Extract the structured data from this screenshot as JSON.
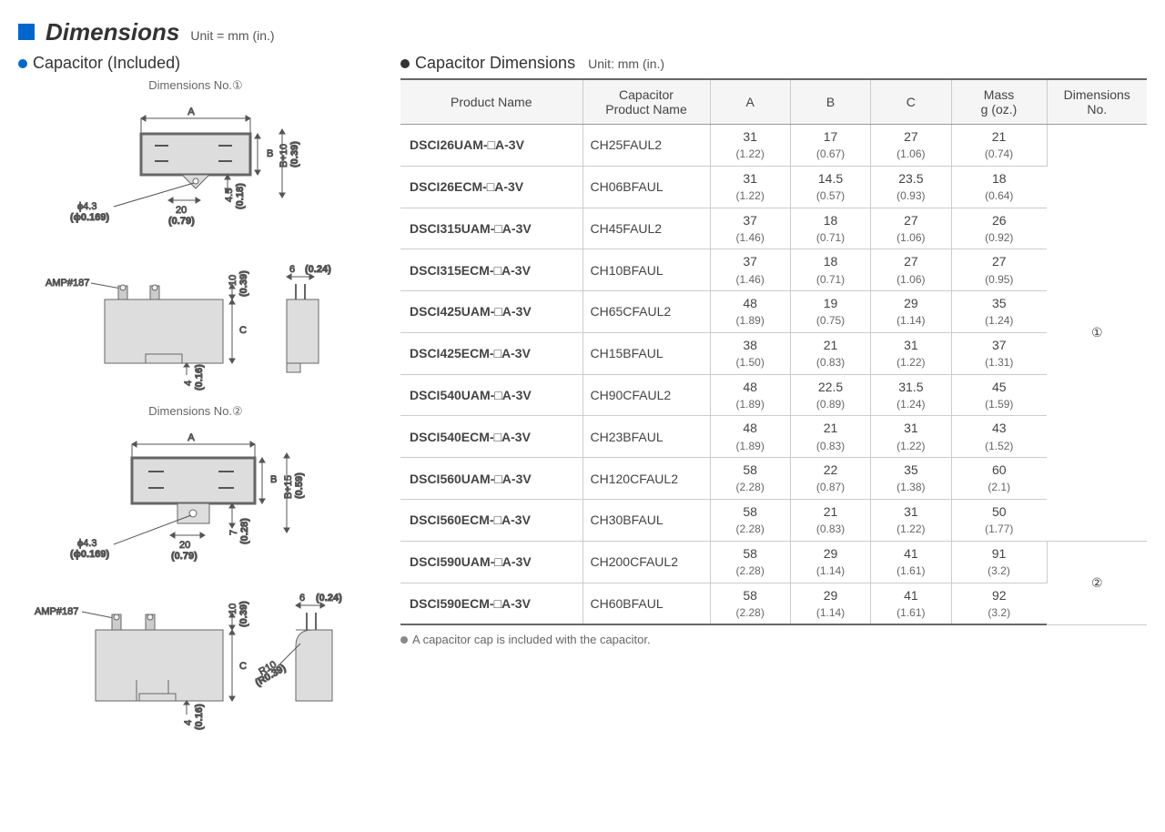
{
  "header": {
    "title": "Dimensions",
    "unit": "Unit = mm (in.)"
  },
  "left": {
    "subtitle": "Capacitor (Included)",
    "dim1_label": "Dimensions No.①",
    "dim2_label": "Dimensions No.②",
    "amp_label": "AMP#187",
    "d1": {
      "A": "A",
      "B": "B",
      "phi": "ϕ4.3",
      "phi_in": "(ϕ0.169)",
      "w20": "20",
      "w20_in": "(0.79)",
      "h45": "4.5",
      "h45_in": "(0.18)",
      "bp10": "B+10",
      "bp10_in": "(0.39)",
      "t10": "10",
      "t10_in": "(0.39)",
      "t6": "6",
      "t6_in": "(0.24)",
      "C": "C",
      "b4": "4",
      "b4_in": "(0.16)"
    },
    "d2": {
      "A": "A",
      "B": "B",
      "phi": "ϕ4.3",
      "phi_in": "(ϕ0.169)",
      "w20": "20",
      "w20_in": "(0.79)",
      "h7": "7",
      "h7_in": "(0.28)",
      "bp15": "B+15",
      "bp15_in": "(0.59)",
      "t10": "10",
      "t10_in": "(0.39)",
      "t6": "6",
      "t6_in": "(0.24)",
      "C": "C",
      "b4": "4",
      "b4_in": "(0.16)",
      "r10": "R10",
      "r10_in": "(R0.39)"
    }
  },
  "right": {
    "subtitle": "Capacitor Dimensions",
    "unit": "Unit: mm (in.)",
    "footnote": "A capacitor cap is included with the capacitor.",
    "columns": [
      "Product Name",
      "Capacitor\nProduct Name",
      "A",
      "B",
      "C",
      "Mass\ng (oz.)",
      "Dimensions\nNo."
    ],
    "rows": [
      {
        "p": "DSCI26UAM-□A-3V",
        "c": "CH25FAUL2",
        "A": "31",
        "Ai": "(1.22)",
        "B": "17",
        "Bi": "(0.67)",
        "C": "27",
        "Ci": "(1.06)",
        "M": "21",
        "Mi": "(0.74)"
      },
      {
        "p": "DSCI26ECM-□A-3V",
        "c": "CH06BFAUL",
        "A": "31",
        "Ai": "(1.22)",
        "B": "14.5",
        "Bi": "(0.57)",
        "C": "23.5",
        "Ci": "(0.93)",
        "M": "18",
        "Mi": "(0.64)"
      },
      {
        "p": "DSCI315UAM-□A-3V",
        "c": "CH45FAUL2",
        "A": "37",
        "Ai": "(1.46)",
        "B": "18",
        "Bi": "(0.71)",
        "C": "27",
        "Ci": "(1.06)",
        "M": "26",
        "Mi": "(0.92)"
      },
      {
        "p": "DSCI315ECM-□A-3V",
        "c": "CH10BFAUL",
        "A": "37",
        "Ai": "(1.46)",
        "B": "18",
        "Bi": "(0.71)",
        "C": "27",
        "Ci": "(1.06)",
        "M": "27",
        "Mi": "(0.95)"
      },
      {
        "p": "DSCI425UAM-□A-3V",
        "c": "CH65CFAUL2",
        "A": "48",
        "Ai": "(1.89)",
        "B": "19",
        "Bi": "(0.75)",
        "C": "29",
        "Ci": "(1.14)",
        "M": "35",
        "Mi": "(1.24)"
      },
      {
        "p": "DSCI425ECM-□A-3V",
        "c": "CH15BFAUL",
        "A": "38",
        "Ai": "(1.50)",
        "B": "21",
        "Bi": "(0.83)",
        "C": "31",
        "Ci": "(1.22)",
        "M": "37",
        "Mi": "(1.31)"
      },
      {
        "p": "DSCI540UAM-□A-3V",
        "c": "CH90CFAUL2",
        "A": "48",
        "Ai": "(1.89)",
        "B": "22.5",
        "Bi": "(0.89)",
        "C": "31.5",
        "Ci": "(1.24)",
        "M": "45",
        "Mi": "(1.59)"
      },
      {
        "p": "DSCI540ECM-□A-3V",
        "c": "CH23BFAUL",
        "A": "48",
        "Ai": "(1.89)",
        "B": "21",
        "Bi": "(0.83)",
        "C": "31",
        "Ci": "(1.22)",
        "M": "43",
        "Mi": "(1.52)"
      },
      {
        "p": "DSCI560UAM-□A-3V",
        "c": "CH120CFAUL2",
        "A": "58",
        "Ai": "(2.28)",
        "B": "22",
        "Bi": "(0.87)",
        "C": "35",
        "Ci": "(1.38)",
        "M": "60",
        "Mi": "(2.1)"
      },
      {
        "p": "DSCI560ECM-□A-3V",
        "c": "CH30BFAUL",
        "A": "58",
        "Ai": "(2.28)",
        "B": "21",
        "Bi": "(0.83)",
        "C": "31",
        "Ci": "(1.22)",
        "M": "50",
        "Mi": "(1.77)"
      },
      {
        "p": "DSCI590UAM-□A-3V",
        "c": "CH200CFAUL2",
        "A": "58",
        "Ai": "(2.28)",
        "B": "29",
        "Bi": "(1.14)",
        "C": "41",
        "Ci": "(1.61)",
        "M": "91",
        "Mi": "(3.2)"
      },
      {
        "p": "DSCI590ECM-□A-3V",
        "c": "CH60BFAUL",
        "A": "58",
        "Ai": "(2.28)",
        "B": "29",
        "Bi": "(1.14)",
        "C": "41",
        "Ci": "(1.61)",
        "M": "92",
        "Mi": "(3.2)"
      }
    ],
    "dim_groups": [
      {
        "span": 10,
        "label": "①"
      },
      {
        "span": 2,
        "label": "②"
      }
    ]
  }
}
